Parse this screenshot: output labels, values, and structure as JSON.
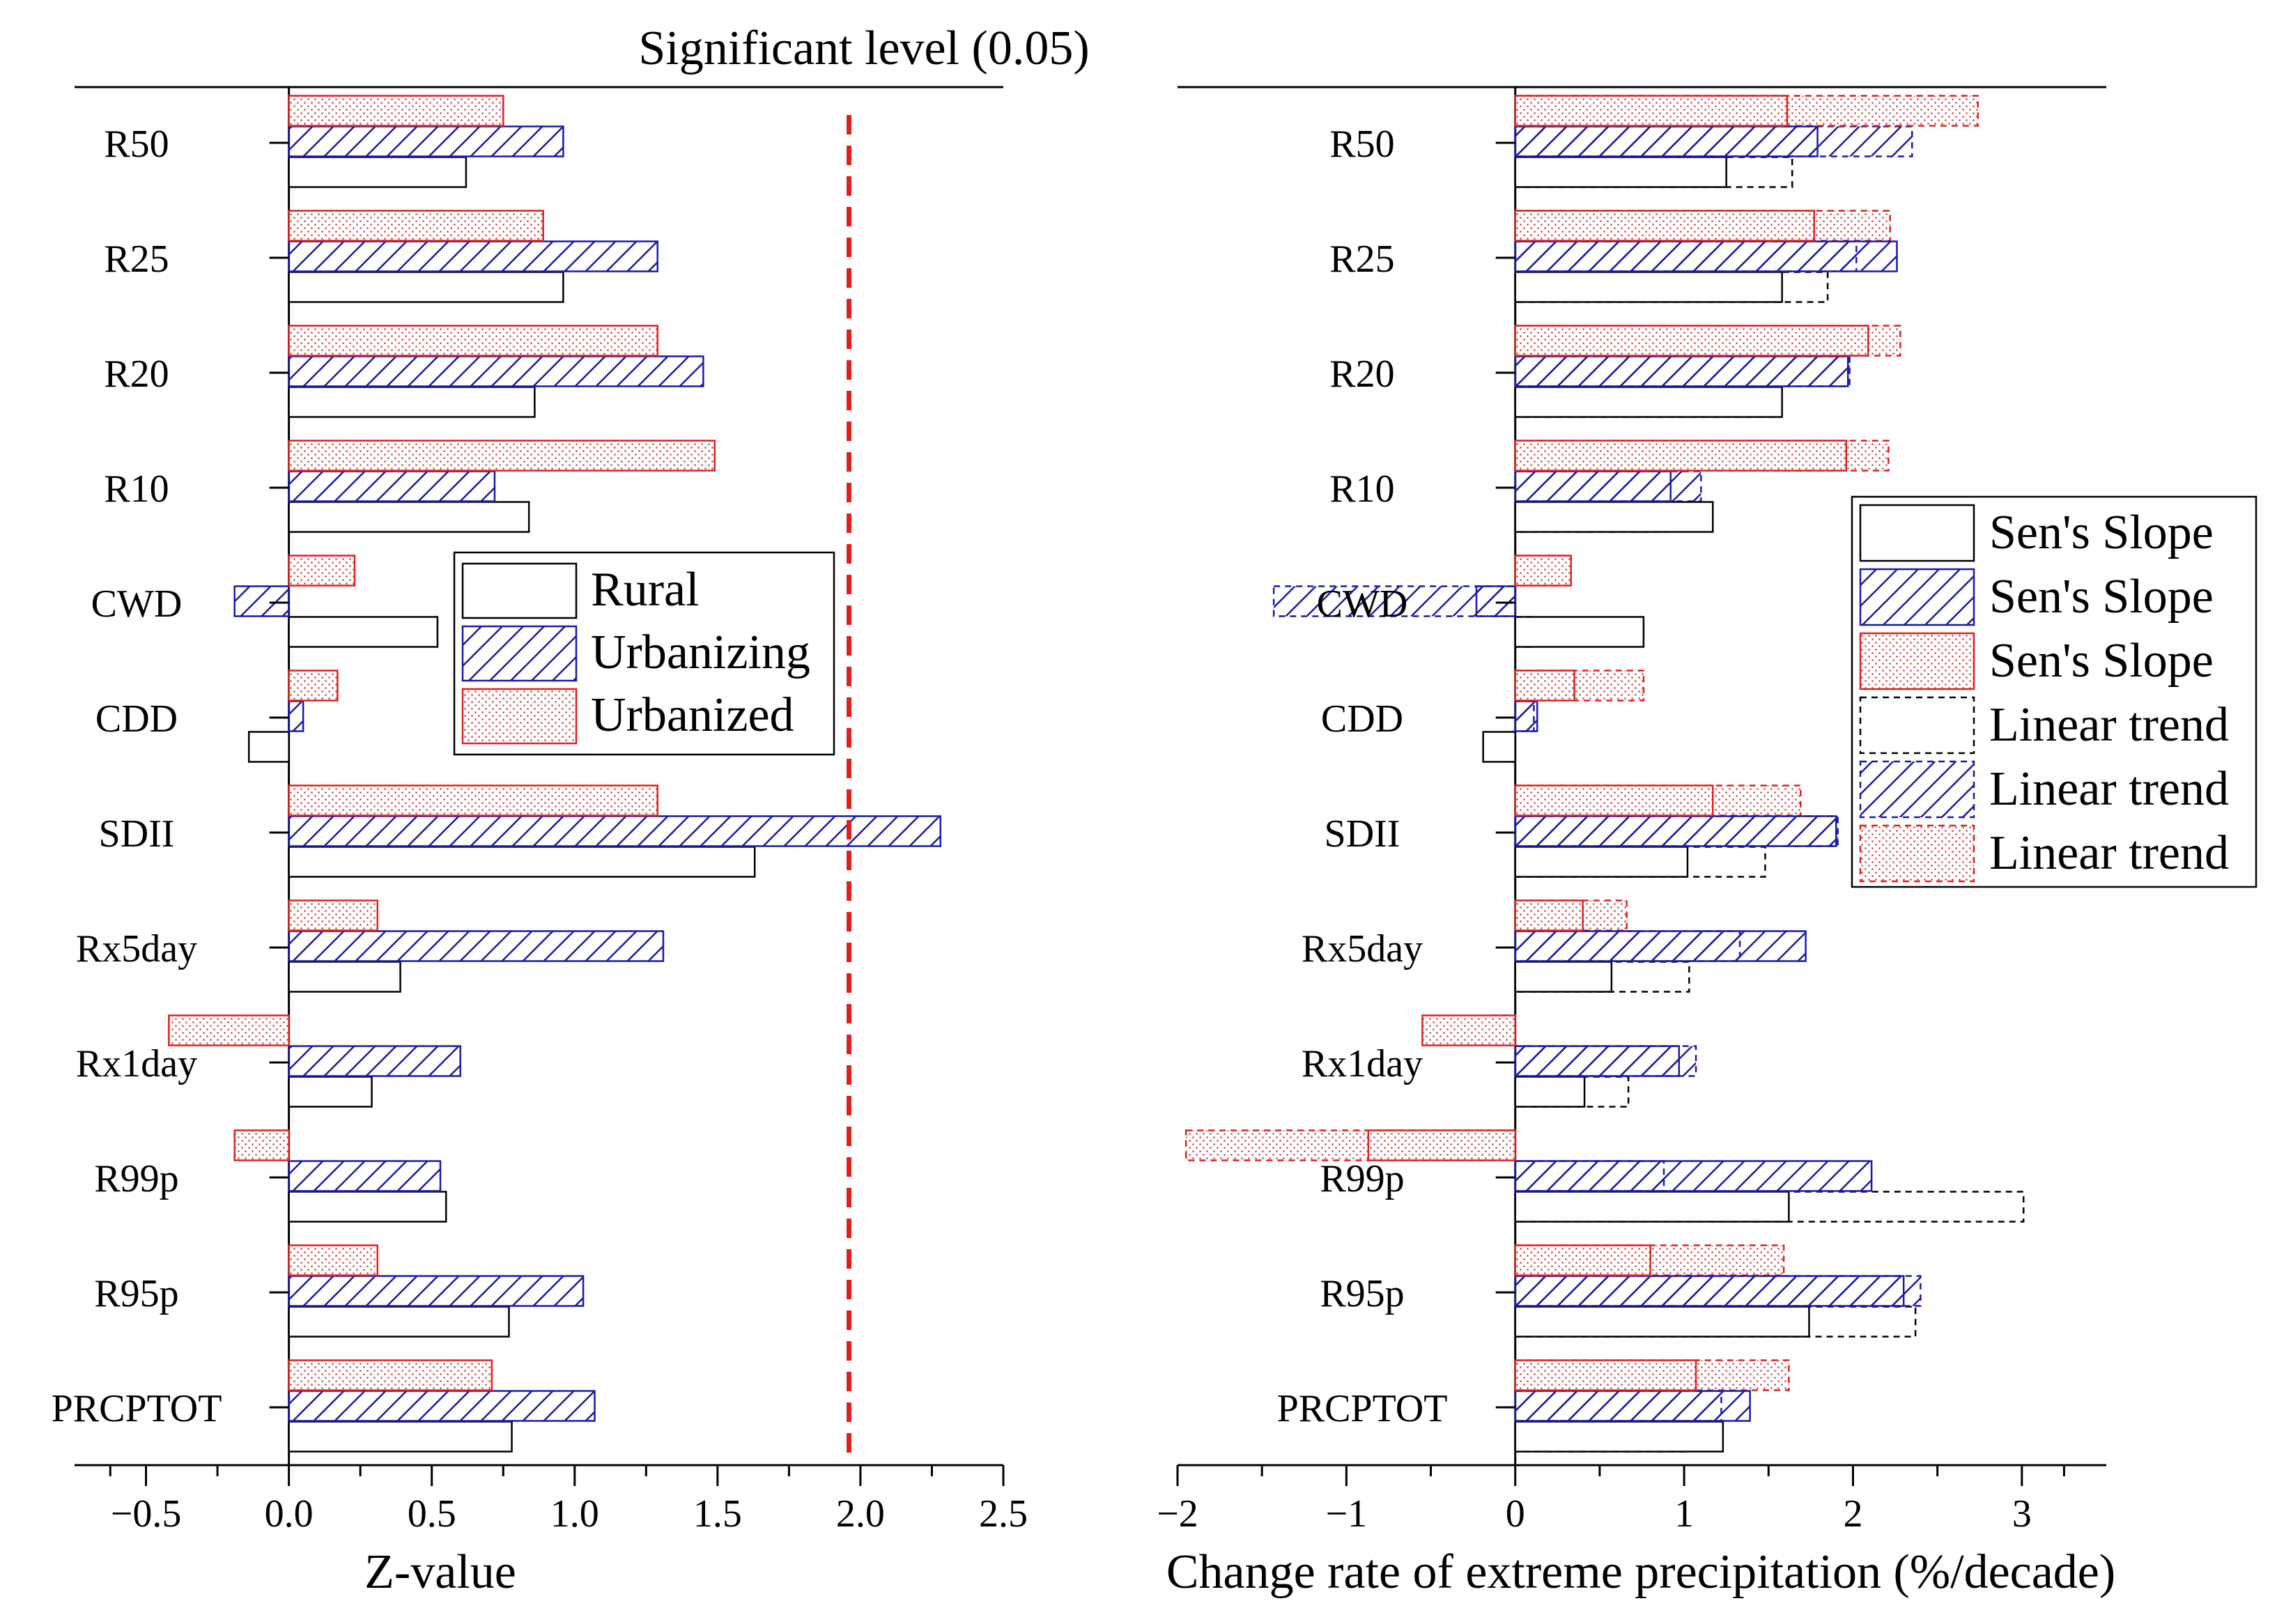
{
  "colors": {
    "rural": "#000000",
    "urbanizing": "#1a1aa8",
    "urbanized": "#e02020",
    "significance_line": "#e02020"
  },
  "chart_data": [
    {
      "type": "bar",
      "orientation": "horizontal",
      "title": "Significant level (0.05)",
      "xlabel": "Z-value",
      "ylabel": "",
      "xlim": [
        -0.75,
        2.5
      ],
      "xticks": [
        -0.5,
        0.0,
        0.5,
        1.0,
        1.5,
        2.0,
        2.5
      ],
      "xtick_labels": [
        "−0.5",
        "0.0",
        "0.5",
        "1.0",
        "1.5",
        "2.0",
        "2.5"
      ],
      "significance_line": 1.96,
      "categories": [
        "R50",
        "R25",
        "R20",
        "R10",
        "CWD",
        "CDD",
        "SDII",
        "Rx5day",
        "Rx1day",
        "R99p",
        "R95p",
        "PRCPTOT"
      ],
      "series": [
        {
          "name": "Rural",
          "style": "outline",
          "values": [
            0.62,
            0.96,
            0.86,
            0.84,
            0.52,
            -0.14,
            1.63,
            0.39,
            0.29,
            0.55,
            0.77,
            0.78
          ]
        },
        {
          "name": "Urbanizing",
          "style": "hatch",
          "values": [
            0.96,
            1.29,
            1.45,
            0.72,
            -0.19,
            0.05,
            2.28,
            1.31,
            0.6,
            0.53,
            1.03,
            1.07
          ]
        },
        {
          "name": "Urbanized",
          "style": "dots",
          "values": [
            0.75,
            0.89,
            1.29,
            1.49,
            0.23,
            0.17,
            1.29,
            0.31,
            -0.42,
            -0.19,
            0.31,
            0.71
          ]
        }
      ],
      "legend": {
        "position": "center",
        "entries": [
          "Rural",
          "Urbanizing",
          "Urbanized"
        ]
      },
      "grid": false
    },
    {
      "type": "bar",
      "orientation": "horizontal",
      "title": "",
      "xlabel": "Change rate of extreme precipitation (%/decade)",
      "ylabel": "",
      "xlim": [
        -2,
        3.5
      ],
      "xticks": [
        -2,
        -1,
        0,
        1,
        2,
        3
      ],
      "xtick_labels": [
        "−2",
        "−1",
        "0",
        "1",
        "2",
        "3"
      ],
      "categories": [
        "R50",
        "R25",
        "R20",
        "R10",
        "CWD",
        "CDD",
        "SDII",
        "Rx5day",
        "Rx1day",
        "R99p",
        "R95p",
        "PRCPTOT"
      ],
      "series": [
        {
          "name": "Sen's Slope",
          "group": "Rural",
          "style": "outline",
          "values": [
            1.25,
            1.58,
            1.58,
            1.17,
            0.76,
            -0.19,
            1.02,
            0.57,
            0.41,
            1.62,
            1.74,
            1.23
          ]
        },
        {
          "name": "Sen's Slope",
          "group": "Urbanizing",
          "style": "hatch",
          "values": [
            1.79,
            2.26,
            1.97,
            0.92,
            -0.23,
            0.13,
            1.9,
            1.72,
            0.97,
            2.11,
            2.3,
            1.39
          ]
        },
        {
          "name": "Sen's Slope",
          "group": "Urbanized",
          "style": "dots",
          "values": [
            1.61,
            1.77,
            2.09,
            1.96,
            0.33,
            0.35,
            1.17,
            0.4,
            -0.55,
            -0.87,
            0.8,
            1.07
          ]
        },
        {
          "name": "Linear trend",
          "group": "Rural",
          "style": "dashed-outline",
          "values": [
            1.64,
            1.85,
            1.57,
            0.9,
            0.09,
            -0.02,
            1.48,
            1.03,
            0.67,
            3.01,
            2.37,
            1.01
          ]
        },
        {
          "name": "Linear trend",
          "group": "Urbanizing",
          "style": "dashed-hatch",
          "values": [
            2.35,
            2.02,
            1.98,
            1.1,
            -1.43,
            0.11,
            1.91,
            1.33,
            1.07,
            0.88,
            2.4,
            1.22
          ]
        },
        {
          "name": "Linear trend",
          "group": "Urbanized",
          "style": "dashed-dots",
          "values": [
            2.74,
            2.22,
            2.28,
            2.21,
            0.27,
            0.76,
            1.69,
            0.66,
            -0.14,
            -1.95,
            1.59,
            1.62
          ]
        }
      ],
      "legend": {
        "position": "center-right",
        "entries": [
          "Sen's Slope",
          "Sen's Slope",
          "Sen's Slope",
          "Linear trend",
          "Linear trend",
          "Linear trend"
        ]
      },
      "grid": false
    }
  ]
}
